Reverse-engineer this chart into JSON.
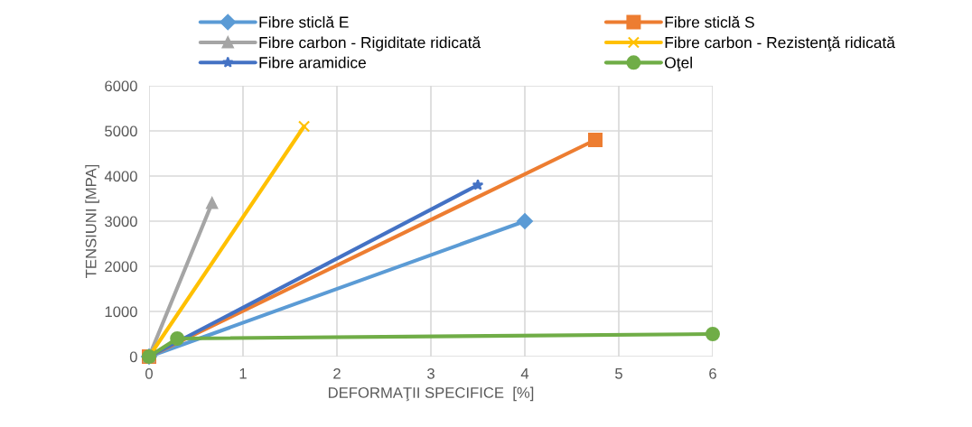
{
  "chart_data": {
    "type": "line",
    "xlabel": "DEFORMAŢII SPECIFICE  [%]",
    "ylabel": "TENSIUNI [MPA]",
    "xlim": [
      0,
      6
    ],
    "xticks": [
      0,
      1,
      2,
      3,
      4,
      5,
      6
    ],
    "ylim": [
      0,
      6000
    ],
    "yticks": [
      0,
      1000,
      2000,
      3000,
      4000,
      5000,
      6000
    ],
    "grid": true,
    "legend": "top",
    "series": [
      {
        "name": "Fibre sticlă E",
        "color": "#5b9bd5",
        "marker": "diamond",
        "x": [
          0,
          4
        ],
        "values": [
          0,
          3000
        ]
      },
      {
        "name": "Fibre sticlă S",
        "color": "#ed7d31",
        "marker": "square",
        "x": [
          0,
          4.75
        ],
        "values": [
          0,
          4800
        ]
      },
      {
        "name": "Fibre carbon - Rigiditate ridicată",
        "color": "#a5a5a5",
        "marker": "triangle",
        "x": [
          0,
          0.67
        ],
        "values": [
          0,
          3400
        ]
      },
      {
        "name": "Fibre carbon - Rezistenţă ridicată",
        "color": "#ffc000",
        "marker": "cross",
        "x": [
          0,
          1.65
        ],
        "values": [
          0,
          5100
        ]
      },
      {
        "name": "Fibre aramidice",
        "color": "#4472c4",
        "marker": "star",
        "x": [
          0,
          3.5
        ],
        "values": [
          0,
          3800
        ]
      },
      {
        "name": "Oţel",
        "color": "#70ad47",
        "marker": "circle",
        "x": [
          0,
          0.3,
          6
        ],
        "values": [
          0,
          400,
          500
        ]
      }
    ]
  }
}
